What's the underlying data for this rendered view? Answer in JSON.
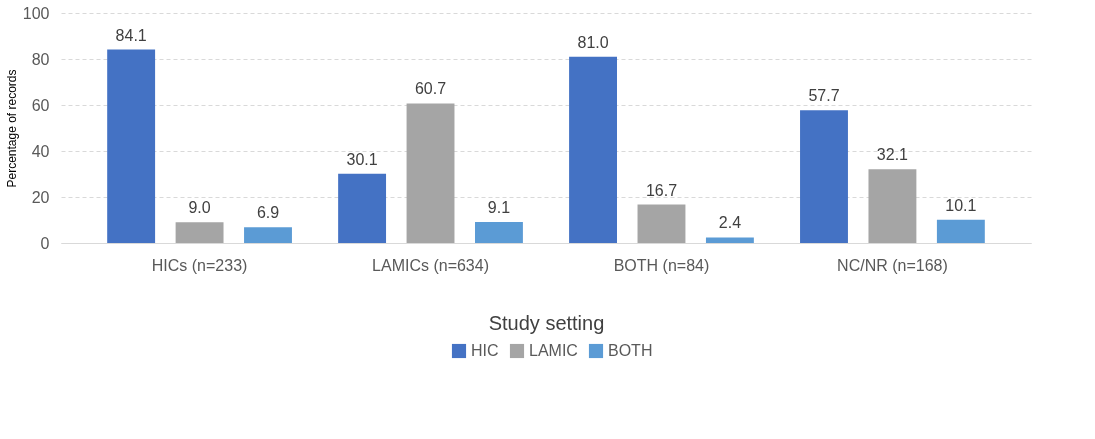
{
  "chart_data": {
    "type": "bar",
    "xlabel": "Study setting",
    "ylabel": "Percentage of records",
    "categories": [
      "HICs (n=233)",
      "LAMICs (n=634)",
      "BOTH (n=84)",
      "NC/NR (n=168)"
    ],
    "series": [
      {
        "name": "HIC",
        "color": "#4472c4",
        "values": [
          84.1,
          30.1,
          81.0,
          57.7
        ],
        "value_labels": [
          "84.1",
          "30.1",
          "81.0",
          "57.7"
        ]
      },
      {
        "name": "LAMIC",
        "color": "#a5a5a5",
        "values": [
          9.0,
          60.7,
          16.7,
          32.1
        ],
        "value_labels": [
          "9.0",
          "60.7",
          "16.7",
          "32.1"
        ]
      },
      {
        "name": "BOTH",
        "color": "#5b9bd5",
        "values": [
          6.9,
          9.1,
          2.4,
          10.1
        ],
        "value_labels": [
          "6.9",
          "9.1",
          "2.4",
          "10.1"
        ]
      }
    ],
    "ylim": [
      0,
      100
    ],
    "yticks": [
      0,
      20,
      40,
      60,
      80,
      100
    ],
    "grid": "y",
    "legend": "bottom"
  }
}
